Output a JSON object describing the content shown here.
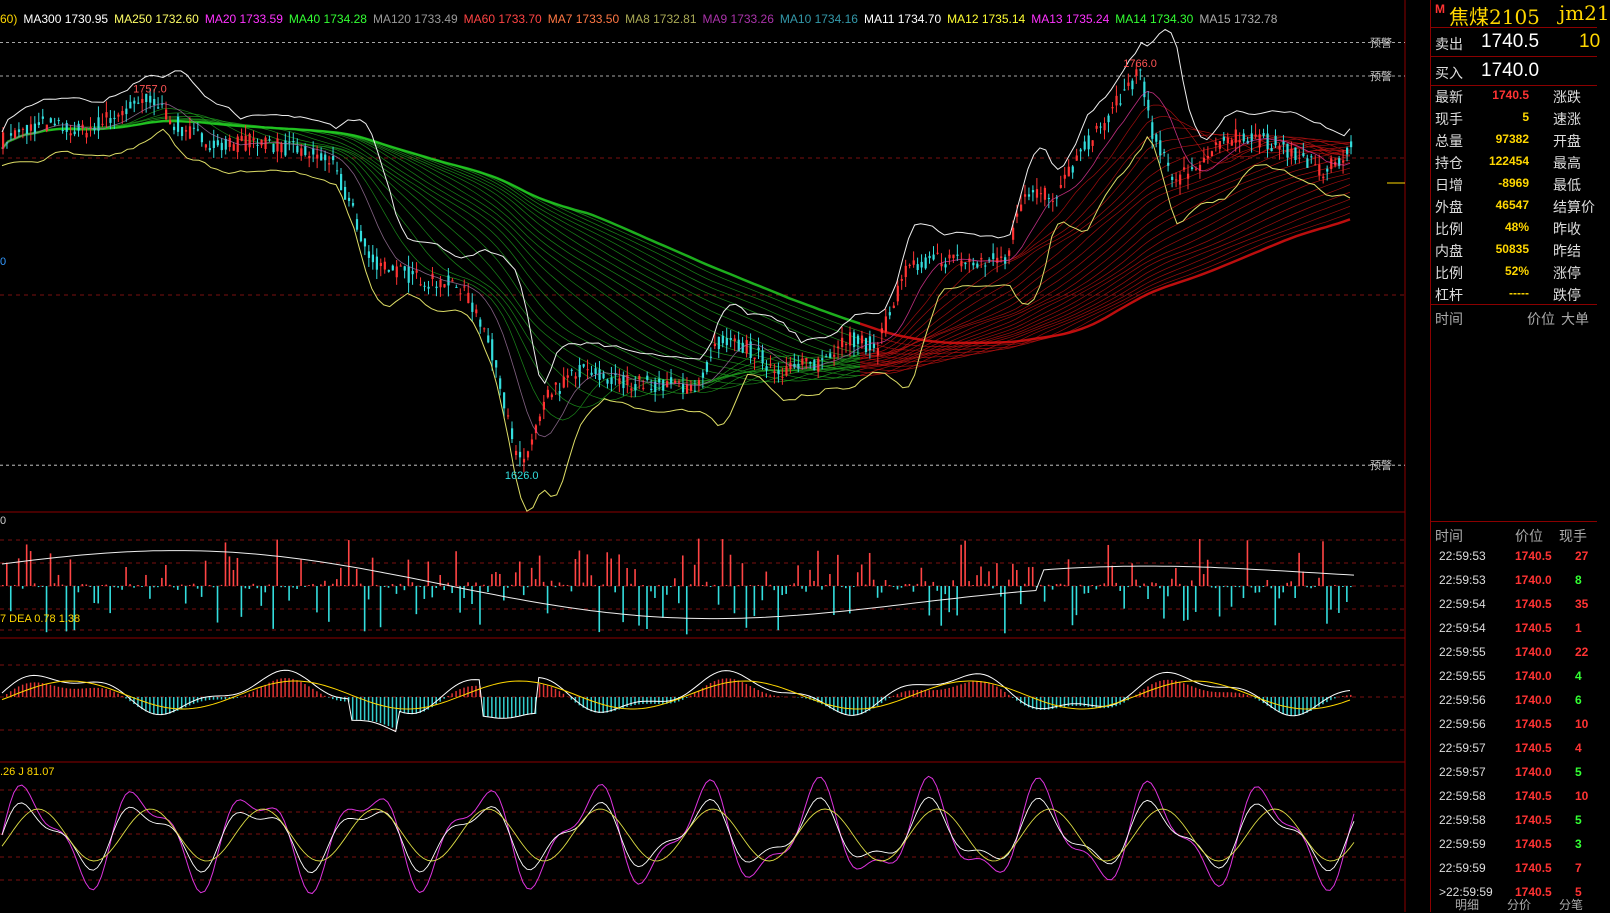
{
  "ma_legend": [
    {
      "text": "60)",
      "color": "#ffd700"
    },
    {
      "text": "MA300 1730.95",
      "color": "#ffffff"
    },
    {
      "text": "MA250 1732.60",
      "color": "#ffff66"
    },
    {
      "text": "MA20 1733.59",
      "color": "#ff33ff"
    },
    {
      "text": "MA40 1734.28",
      "color": "#33ff33"
    },
    {
      "text": "MA120 1733.49",
      "color": "#999999"
    },
    {
      "text": "MA60 1733.70",
      "color": "#ff4444"
    },
    {
      "text": "MA7 1733.50",
      "color": "#ff7744"
    },
    {
      "text": "MA8 1732.81",
      "color": "#aaaa55"
    },
    {
      "text": "MA9 1733.26",
      "color": "#aa33aa"
    },
    {
      "text": "MA10 1734.16",
      "color": "#3399aa"
    },
    {
      "text": "MA11 1734.70",
      "color": "#ffffff"
    },
    {
      "text": "MA12 1735.14",
      "color": "#ffff33"
    },
    {
      "text": "MA13 1735.24",
      "color": "#ff33ff"
    },
    {
      "text": "MA14 1734.30",
      "color": "#33ff33"
    },
    {
      "text": "MA15 1732.78",
      "color": "#aaaaaa"
    }
  ],
  "alert_label": "预警",
  "main_left_label": "0",
  "vol_left_label": "0",
  "macd_legend": {
    "prefix": "7",
    "dea": "DEA 0.78",
    "macd": "1.38"
  },
  "kdj_legend": {
    "prefix": ".26",
    "j": "J 81.07"
  },
  "chart_data": {
    "type": "candlestick",
    "instrument": "焦煤2105",
    "annotations": [
      {
        "label": "1757.0"
      },
      {
        "label": "1766.0"
      },
      {
        "label": "1626.0"
      }
    ],
    "price_points": [
      {
        "i": 0,
        "p": 1742
      },
      {
        "i": 20,
        "p": 1748
      },
      {
        "i": 40,
        "p": 1745
      },
      {
        "i": 60,
        "p": 1752
      },
      {
        "i": 75,
        "p": 1757
      },
      {
        "i": 90,
        "p": 1746
      },
      {
        "i": 110,
        "p": 1740
      },
      {
        "i": 130,
        "p": 1742
      },
      {
        "i": 150,
        "p": 1738
      },
      {
        "i": 165,
        "p": 1735
      },
      {
        "i": 175,
        "p": 1720
      },
      {
        "i": 185,
        "p": 1700
      },
      {
        "i": 200,
        "p": 1695
      },
      {
        "i": 215,
        "p": 1692
      },
      {
        "i": 230,
        "p": 1690
      },
      {
        "i": 240,
        "p": 1680
      },
      {
        "i": 250,
        "p": 1660
      },
      {
        "i": 258,
        "p": 1630
      },
      {
        "i": 262,
        "p": 1626
      },
      {
        "i": 275,
        "p": 1650
      },
      {
        "i": 290,
        "p": 1660
      },
      {
        "i": 310,
        "p": 1656
      },
      {
        "i": 330,
        "p": 1655
      },
      {
        "i": 350,
        "p": 1654
      },
      {
        "i": 360,
        "p": 1670
      },
      {
        "i": 375,
        "p": 1668
      },
      {
        "i": 390,
        "p": 1660
      },
      {
        "i": 410,
        "p": 1662
      },
      {
        "i": 425,
        "p": 1672
      },
      {
        "i": 440,
        "p": 1668
      },
      {
        "i": 455,
        "p": 1695
      },
      {
        "i": 470,
        "p": 1700
      },
      {
        "i": 490,
        "p": 1698
      },
      {
        "i": 505,
        "p": 1700
      },
      {
        "i": 515,
        "p": 1725
      },
      {
        "i": 530,
        "p": 1722
      },
      {
        "i": 545,
        "p": 1740
      },
      {
        "i": 555,
        "p": 1748
      },
      {
        "i": 565,
        "p": 1760
      },
      {
        "i": 573,
        "p": 1766
      },
      {
        "i": 580,
        "p": 1742
      },
      {
        "i": 590,
        "p": 1728
      },
      {
        "i": 605,
        "p": 1735
      },
      {
        "i": 620,
        "p": 1744
      },
      {
        "i": 635,
        "p": 1742
      },
      {
        "i": 650,
        "p": 1738
      },
      {
        "i": 665,
        "p": 1730
      },
      {
        "i": 680,
        "p": 1740
      }
    ],
    "ylim": [
      1610,
      1785
    ],
    "alert_levels": [
      1777,
      1765,
      1626
    ]
  },
  "side": {
    "m": "M",
    "name": "焦煤2105",
    "code": "jm21",
    "sell_label": "卖出",
    "sell_price": "1740.5",
    "sell_qty": "10",
    "buy_label": "买入",
    "buy_price": "1740.0",
    "quote": [
      {
        "k1": "最新",
        "v1": "1740.5",
        "c": "#ff3333",
        "k2": "涨跌"
      },
      {
        "k1": "现手",
        "v1": "5",
        "c": "#ffd700",
        "k2": "速涨"
      },
      {
        "k1": "总量",
        "v1": "97382",
        "c": "#ffd700",
        "k2": "开盘"
      },
      {
        "k1": "持仓",
        "v1": "122454",
        "c": "#ffd700",
        "k2": "最高"
      },
      {
        "k1": "日增",
        "v1": "-8969",
        "c": "#ffd700",
        "k2": "最低"
      },
      {
        "k1": "外盘",
        "v1": "46547",
        "c": "#ffd700",
        "k2": "结算价"
      },
      {
        "k1": "比例",
        "v1": "48%",
        "c": "#ffd700",
        "k2": "昨收"
      },
      {
        "k1": "内盘",
        "v1": "50835",
        "c": "#ffd700",
        "k2": "昨结"
      },
      {
        "k1": "比例",
        "v1": "52%",
        "c": "#ffd700",
        "k2": "涨停"
      },
      {
        "k1": "杠杆",
        "v1": "-----",
        "c": "#ffd700",
        "k2": "跌停"
      }
    ],
    "th1": {
      "time": "时间",
      "price": "价位",
      "big": "大单"
    },
    "th2": {
      "time": "时间",
      "price": "价位",
      "qty": "现手"
    },
    "ticks": [
      {
        "t": "22:59:53",
        "p": "1740.5",
        "pc": "#ff3333",
        "q": "27",
        "qc": "#ff3333"
      },
      {
        "t": "22:59:53",
        "p": "1740.0",
        "pc": "#ff3333",
        "q": "8",
        "qc": "#33ff33"
      },
      {
        "t": "22:59:54",
        "p": "1740.5",
        "pc": "#ff3333",
        "q": "35",
        "qc": "#ff3333"
      },
      {
        "t": "22:59:54",
        "p": "1740.5",
        "pc": "#ff3333",
        "q": "1",
        "qc": "#ff3333"
      },
      {
        "t": "22:59:55",
        "p": "1740.0",
        "pc": "#ff3333",
        "q": "22",
        "qc": "#ff3333"
      },
      {
        "t": "22:59:55",
        "p": "1740.0",
        "pc": "#ff3333",
        "q": "4",
        "qc": "#33ff33"
      },
      {
        "t": "22:59:56",
        "p": "1740.0",
        "pc": "#ff3333",
        "q": "6",
        "qc": "#33ff33"
      },
      {
        "t": "22:59:56",
        "p": "1740.5",
        "pc": "#ff3333",
        "q": "10",
        "qc": "#ff3333"
      },
      {
        "t": "22:59:57",
        "p": "1740.5",
        "pc": "#ff3333",
        "q": "4",
        "qc": "#ff3333"
      },
      {
        "t": "22:59:57",
        "p": "1740.0",
        "pc": "#ff3333",
        "q": "5",
        "qc": "#33ff33"
      },
      {
        "t": "22:59:58",
        "p": "1740.5",
        "pc": "#ff3333",
        "q": "10",
        "qc": "#ff3333"
      },
      {
        "t": "22:59:58",
        "p": "1740.5",
        "pc": "#ff3333",
        "q": "5",
        "qc": "#33ff33"
      },
      {
        "t": "22:59:59",
        "p": "1740.5",
        "pc": "#ff3333",
        "q": "3",
        "qc": "#33ff33"
      },
      {
        "t": "22:59:59",
        "p": "1740.5",
        "pc": "#ff3333",
        "q": "7",
        "qc": "#ff3333"
      },
      {
        "t": ">22:59:59",
        "p": "1740.5",
        "pc": "#ff3333",
        "q": "5",
        "qc": "#ff3333"
      }
    ],
    "bottom_tabs": [
      "明细",
      "分价",
      "分笔"
    ]
  }
}
